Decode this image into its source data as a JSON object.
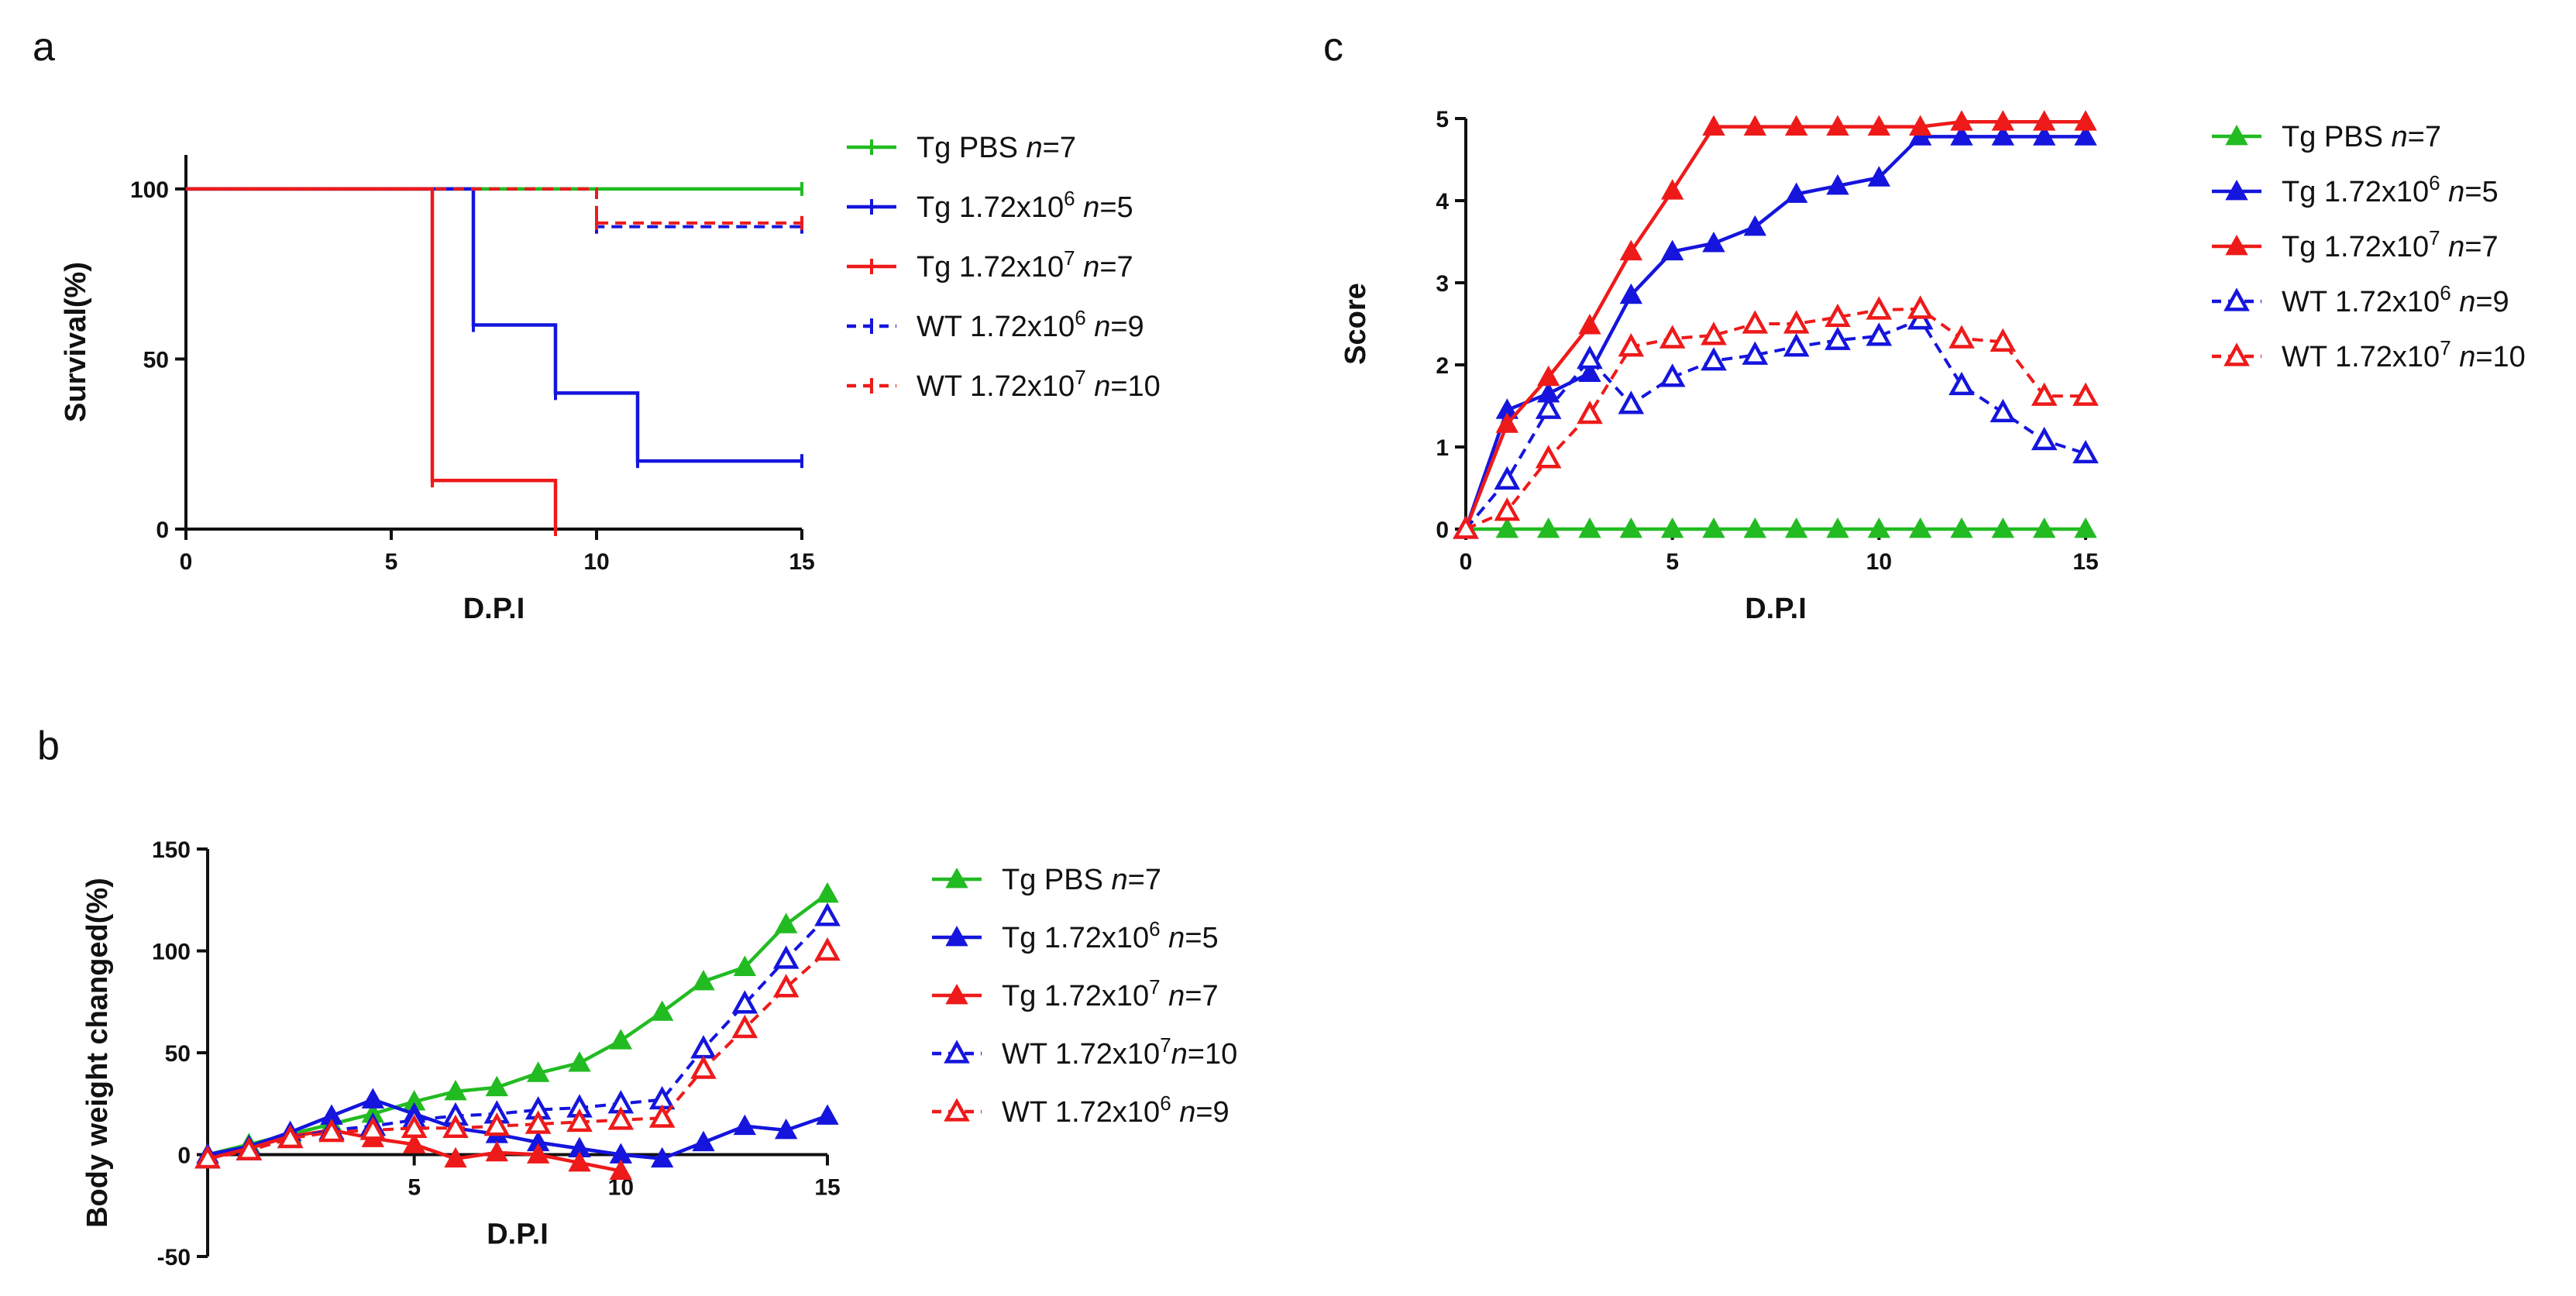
{
  "colors": {
    "green": "#22bb22",
    "blue": "#1515dd",
    "red": "#ee1a1a"
  },
  "panels": [
    {
      "letter": "a",
      "chart_data": {
        "type": "line",
        "style": "step",
        "xlabel": "D.P.I",
        "ylabel": "Survival(%)",
        "xlim": [
          0,
          15
        ],
        "ylim": [
          0,
          110
        ],
        "xticks": [
          0,
          5,
          10,
          15
        ],
        "yticks": [
          0,
          50,
          100
        ],
        "series": [
          {
            "name": "Tg PBS n=7",
            "color": "green",
            "dashed": false,
            "marker": "line",
            "x": [
              0,
              15
            ],
            "y": [
              100,
              100
            ]
          },
          {
            "name": "Tg 1.72x10^6 n=5",
            "color": "blue",
            "dashed": false,
            "marker": "line",
            "x": [
              0,
              7,
              9,
              11,
              15
            ],
            "y": [
              100,
              60,
              40,
              20,
              20
            ]
          },
          {
            "name": "Tg 1.72x10^7 n=7",
            "color": "red",
            "dashed": false,
            "marker": "line",
            "x": [
              0,
              6,
              9
            ],
            "y": [
              100,
              14.3,
              0
            ]
          },
          {
            "name": "WT 1.72x10^6 n=9",
            "color": "blue",
            "dashed": true,
            "marker": "line",
            "x": [
              0,
              10,
              15
            ],
            "y": [
              100,
              88.9,
              88.9
            ]
          },
          {
            "name": "WT 1.72x10^7 n=10",
            "color": "red",
            "dashed": true,
            "marker": "line",
            "x": [
              0,
              10,
              15
            ],
            "y": [
              100,
              90,
              90
            ]
          }
        ],
        "legend": [
          {
            "pre": "Tg PBS ",
            "exp": "",
            "post": "",
            "n": "n",
            "nval": "=7"
          },
          {
            "pre": "Tg 1.72x10",
            "exp": "6",
            "post": " ",
            "n": "n",
            "nval": "=5"
          },
          {
            "pre": "Tg 1.72x10",
            "exp": "7",
            "post": " ",
            "n": "n",
            "nval": "=7"
          },
          {
            "pre": "WT 1.72x10",
            "exp": "6",
            "post": " ",
            "n": "n",
            "nval": "=9"
          },
          {
            "pre": "WT 1.72x10",
            "exp": "7",
            "post": " ",
            "n": "n",
            "nval": "=10"
          }
        ]
      }
    },
    {
      "letter": "b",
      "chart_data": {
        "type": "line",
        "style": "markers",
        "xlabel": "D.P.I",
        "ylabel": "Body weight changed(%)",
        "xlim": [
          0,
          15
        ],
        "ylim": [
          -50,
          150
        ],
        "xticks": [
          5,
          10,
          15
        ],
        "yticks": [
          -50,
          0,
          50,
          100,
          150
        ],
        "series": [
          {
            "name": "Tg PBS n=7",
            "color": "green",
            "dashed": false,
            "marker": "filled",
            "x": [
              0,
              1,
              2,
              3,
              4,
              5,
              6,
              7,
              8,
              9,
              10,
              11,
              12,
              13,
              14,
              15
            ],
            "y": [
              0,
              5,
              10,
              15,
              20,
              26,
              31,
              33,
              40,
              45,
              56,
              70,
              85,
              92,
              113,
              128
            ]
          },
          {
            "name": "Tg 1.72x10^6 n=5",
            "color": "blue",
            "dashed": false,
            "marker": "filled",
            "x": [
              0,
              1,
              2,
              3,
              4,
              5,
              6,
              7,
              8,
              9,
              10,
              11,
              12,
              13,
              14,
              15
            ],
            "y": [
              0,
              4,
              11,
              19,
              27,
              20,
              13,
              10,
              6,
              3,
              0,
              -2,
              6,
              14,
              12,
              19
            ]
          },
          {
            "name": "Tg 1.72x10^7 n=7",
            "color": "red",
            "dashed": false,
            "marker": "filled",
            "x": [
              0,
              1,
              2,
              3,
              4,
              5,
              6,
              7,
              8,
              9,
              10
            ],
            "y": [
              -2,
              3,
              9,
              12,
              8,
              5,
              -2,
              1,
              0,
              -4,
              -8
            ]
          },
          {
            "name": "WT 1.72x10^7 n=10",
            "color": "blue",
            "dashed": true,
            "marker": "open",
            "x": [
              0,
              1,
              2,
              3,
              4,
              5,
              6,
              7,
              8,
              9,
              10,
              11,
              12,
              13,
              14,
              15
            ],
            "y": [
              -2,
              2,
              8,
              12,
              14,
              17,
              19,
              20,
              22,
              23,
              25,
              27,
              52,
              74,
              96,
              117
            ]
          },
          {
            "name": "WT 1.72x10^6 n=9",
            "color": "red",
            "dashed": true,
            "marker": "open",
            "x": [
              0,
              1,
              2,
              3,
              4,
              5,
              6,
              7,
              8,
              9,
              10,
              11,
              12,
              13,
              14,
              15
            ],
            "y": [
              -2,
              2,
              8,
              11,
              12,
              13,
              13,
              14,
              15,
              16,
              17,
              18,
              42,
              62,
              82,
              100
            ]
          }
        ],
        "legend": [
          {
            "pre": "Tg PBS ",
            "exp": "",
            "post": "",
            "n": "n",
            "nval": "=7"
          },
          {
            "pre": "Tg 1.72x10",
            "exp": "6",
            "post": " ",
            "n": "n",
            "nval": "=5"
          },
          {
            "pre": "Tg 1.72x10",
            "exp": "7",
            "post": " ",
            "n": "n",
            "nval": "=7"
          },
          {
            "pre": "WT 1.72x10",
            "exp": "7",
            "post": "",
            "n": "n",
            "nval": "=10"
          },
          {
            "pre": "WT 1.72x10",
            "exp": "6",
            "post": " ",
            "n": "n",
            "nval": "=9"
          }
        ]
      }
    },
    {
      "letter": "c",
      "chart_data": {
        "type": "line",
        "style": "markers",
        "xlabel": "D.P.I",
        "ylabel": "Score",
        "xlim": [
          0,
          15
        ],
        "ylim": [
          0,
          5
        ],
        "xticks": [
          0,
          5,
          10,
          15
        ],
        "yticks": [
          0,
          1,
          2,
          3,
          4,
          5
        ],
        "series": [
          {
            "name": "Tg PBS n=7",
            "color": "green",
            "dashed": false,
            "marker": "filled",
            "x": [
              0,
              1,
              2,
              3,
              4,
              5,
              6,
              7,
              8,
              9,
              10,
              11,
              12,
              13,
              14,
              15
            ],
            "y": [
              0,
              0,
              0,
              0,
              0,
              0,
              0,
              0,
              0,
              0,
              0,
              0,
              0,
              0,
              0,
              0
            ]
          },
          {
            "name": "Tg 1.72x10^6 n=5",
            "color": "blue",
            "dashed": false,
            "marker": "filled",
            "x": [
              0,
              1,
              2,
              3,
              4,
              5,
              6,
              7,
              8,
              9,
              10,
              11,
              12,
              13,
              14,
              15
            ],
            "y": [
              0,
              1.45,
              1.65,
              1.9,
              2.85,
              3.38,
              3.48,
              3.68,
              4.08,
              4.18,
              4.28,
              4.78,
              4.78,
              4.78,
              4.78,
              4.78
            ]
          },
          {
            "name": "Tg 1.72x10^7 n=7",
            "color": "red",
            "dashed": false,
            "marker": "filled",
            "x": [
              0,
              1,
              2,
              3,
              4,
              5,
              6,
              7,
              8,
              9,
              10,
              11,
              12,
              13,
              14,
              15
            ],
            "y": [
              0,
              1.28,
              1.85,
              2.48,
              3.38,
              4.12,
              4.9,
              4.9,
              4.9,
              4.9,
              4.9,
              4.9,
              4.96,
              4.96,
              4.96,
              4.96
            ]
          },
          {
            "name": "WT 1.72x10^6 n=9",
            "color": "blue",
            "dashed": true,
            "marker": "open",
            "x": [
              0,
              1,
              2,
              3,
              4,
              5,
              6,
              7,
              8,
              9,
              10,
              11,
              12,
              13,
              14,
              15
            ],
            "y": [
              0,
              0.6,
              1.46,
              2.07,
              1.52,
              1.85,
              2.05,
              2.12,
              2.22,
              2.3,
              2.35,
              2.55,
              1.75,
              1.42,
              1.08,
              0.92
            ]
          },
          {
            "name": "WT 1.72x10^7 n=10",
            "color": "red",
            "dashed": true,
            "marker": "open",
            "x": [
              0,
              1,
              2,
              3,
              4,
              5,
              6,
              7,
              8,
              9,
              10,
              11,
              12,
              13,
              14,
              15
            ],
            "y": [
              0,
              0.22,
              0.86,
              1.4,
              2.22,
              2.32,
              2.36,
              2.5,
              2.5,
              2.58,
              2.67,
              2.68,
              2.32,
              2.28,
              1.62,
              1.62
            ]
          }
        ],
        "legend": [
          {
            "pre": "Tg PBS ",
            "exp": "",
            "post": "",
            "n": "n",
            "nval": "=7"
          },
          {
            "pre": "Tg 1.72x10",
            "exp": "6",
            "post": " ",
            "n": "n",
            "nval": "=5"
          },
          {
            "pre": "Tg 1.72x10",
            "exp": "7",
            "post": " ",
            "n": "n",
            "nval": "=7"
          },
          {
            "pre": "WT 1.72x10",
            "exp": "6",
            "post": " ",
            "n": "n",
            "nval": "=9"
          },
          {
            "pre": "WT 1.72x10",
            "exp": "7",
            "post": " ",
            "n": "n",
            "nval": "=10"
          }
        ]
      }
    }
  ]
}
